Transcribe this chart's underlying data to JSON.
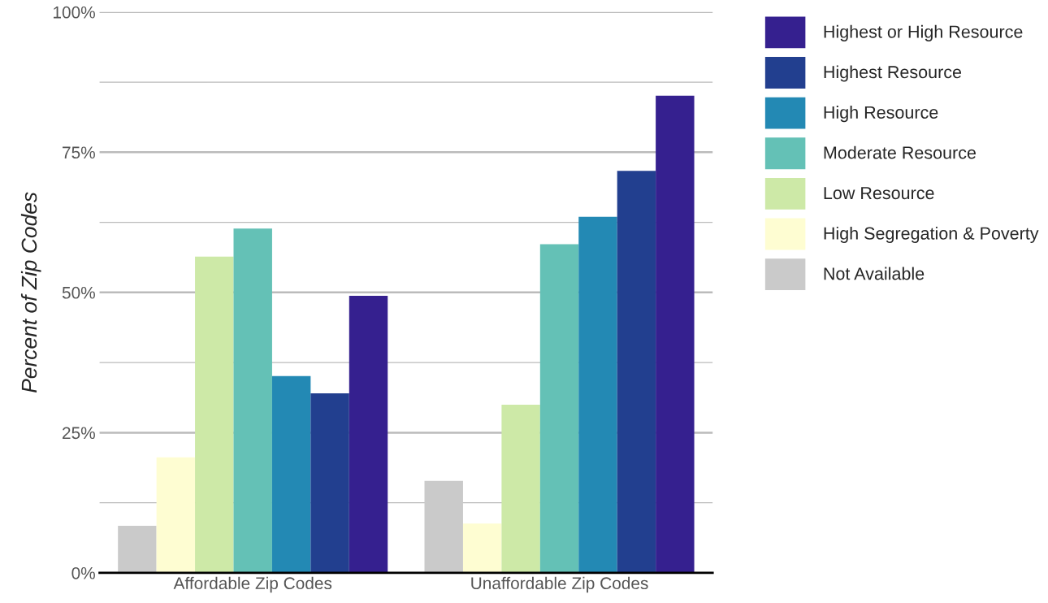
{
  "chart_data": {
    "type": "bar",
    "ylabel": "Percent of Zip Codes",
    "categories": [
      "Affordable Zip Codes",
      "Unaffordable Zip Codes"
    ],
    "series": [
      {
        "name": "Not Available",
        "color": "#cacaca",
        "values": [
          8.4,
          16.4
        ]
      },
      {
        "name": "High Segregation & Poverty",
        "color": "#fefdd2",
        "values": [
          20.6,
          8.8
        ]
      },
      {
        "name": "Low Resource",
        "color": "#cde9a7",
        "values": [
          56.4,
          30.0
        ]
      },
      {
        "name": "Moderate Resource",
        "color": "#64c1b6",
        "values": [
          61.4,
          58.6
        ]
      },
      {
        "name": "High Resource",
        "color": "#2389b4",
        "values": [
          35.1,
          63.5
        ]
      },
      {
        "name": "Highest Resource",
        "color": "#223f8f",
        "values": [
          32.0,
          71.7
        ]
      },
      {
        "name": "Highest or High Resource",
        "color": "#35208f",
        "values": [
          49.4,
          85.1
        ]
      }
    ],
    "ylim": [
      0,
      100
    ],
    "yticks": [
      {
        "value": 0,
        "label": "0%"
      },
      {
        "value": 12.5,
        "label": null
      },
      {
        "value": 25,
        "label": "25%"
      },
      {
        "value": 37.5,
        "label": null
      },
      {
        "value": 50,
        "label": "50%"
      },
      {
        "value": 62.5,
        "label": null
      },
      {
        "value": 75,
        "label": "75%"
      },
      {
        "value": 87.5,
        "label": null
      },
      {
        "value": 100,
        "label": "100%"
      }
    ],
    "grid": "y",
    "legend": "top right"
  }
}
